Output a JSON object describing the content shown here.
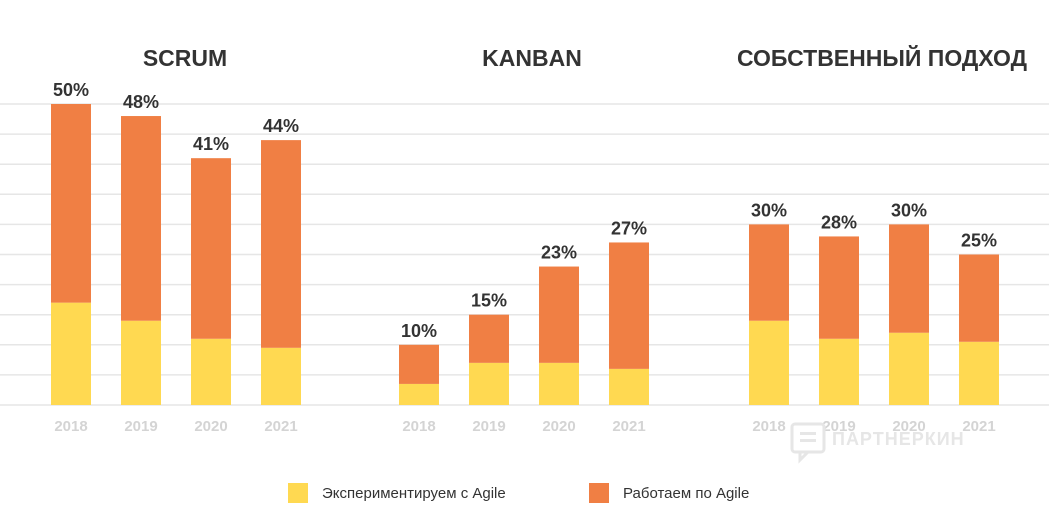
{
  "chart_data": {
    "type": "bar",
    "stacked": true,
    "categories": [
      "2018",
      "2019",
      "2020",
      "2021"
    ],
    "ylim": [
      0,
      50
    ],
    "grid": true,
    "groups": [
      {
        "title": "SCRUM",
        "series": [
          {
            "name": "Экспериментируем с Agile",
            "values": [
              17,
              14,
              11,
              9.5
            ]
          },
          {
            "name": "Работаем по Agile",
            "values": [
              33,
              34,
              30,
              34.5
            ]
          }
        ],
        "totals": [
          "50%",
          "48%",
          "41%",
          "44%"
        ]
      },
      {
        "title": "KANBAN",
        "series": [
          {
            "name": "Экспериментируем с Agile",
            "values": [
              3.5,
              7,
              7,
              6
            ]
          },
          {
            "name": "Работаем по Agile",
            "values": [
              6.5,
              8,
              16,
              21
            ]
          }
        ],
        "totals": [
          "10%",
          "15%",
          "23%",
          "27%"
        ]
      },
      {
        "title": "СОБСТВЕННЫЙ ПОДХОД",
        "series": [
          {
            "name": "Экспериментируем с Agile",
            "values": [
              14,
              11,
              12,
              10.5
            ]
          },
          {
            "name": "Работаем по Agile",
            "values": [
              16,
              17,
              18,
              14.5
            ]
          }
        ],
        "totals": [
          "30%",
          "28%",
          "30%",
          "25%"
        ]
      }
    ],
    "legend": [
      {
        "label": "Экспериментируем с Agile",
        "color": "#ffd951"
      },
      {
        "label": "Работаем по Agile",
        "color": "#f07f44"
      }
    ],
    "legend_position": "bottom-center"
  },
  "colors": {
    "experimenting": "#ffd951",
    "working": "#f07f44",
    "grid": "#e6e6e6"
  },
  "watermark": {
    "text": "ПАРТНЕРКИН"
  }
}
